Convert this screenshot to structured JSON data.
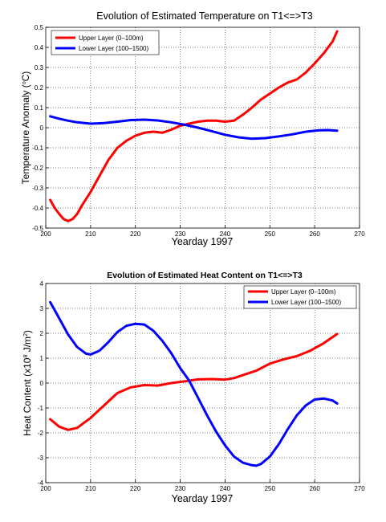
{
  "chart_data": [
    {
      "type": "line",
      "title": "Evolution of Estimated Temperature on T1<=>T3",
      "xlabel": "Yearday 1997",
      "ylabel_prefix": "Temperature Anomaly (",
      "ylabel_sup": "o",
      "ylabel_suffix": "C)",
      "xlim": [
        200,
        270
      ],
      "ylim": [
        -0.5,
        0.5
      ],
      "xticks": [
        200,
        210,
        220,
        230,
        240,
        250,
        260,
        270
      ],
      "yticks": [
        -0.5,
        -0.4,
        -0.3,
        -0.2,
        -0.1,
        0,
        0.1,
        0.2,
        0.3,
        0.4,
        0.5
      ],
      "grid": true,
      "legend_position": "top-left",
      "series": [
        {
          "name": "Upper Layer (0–100m)",
          "color": "#ff0000",
          "x": [
            201,
            202,
            203,
            204,
            205,
            206,
            207,
            208,
            210,
            212,
            214,
            216,
            218,
            220,
            222,
            224,
            226,
            228,
            230,
            232,
            234,
            236,
            238,
            240,
            242,
            244,
            246,
            248,
            250,
            252,
            254,
            256,
            258,
            260,
            262,
            264,
            265
          ],
          "y": [
            -0.36,
            -0.4,
            -0.43,
            -0.455,
            -0.465,
            -0.455,
            -0.43,
            -0.39,
            -0.32,
            -0.24,
            -0.16,
            -0.1,
            -0.065,
            -0.04,
            -0.025,
            -0.02,
            -0.025,
            -0.01,
            0.01,
            0.02,
            0.03,
            0.035,
            0.035,
            0.03,
            0.035,
            0.065,
            0.1,
            0.14,
            0.17,
            0.2,
            0.225,
            0.24,
            0.275,
            0.32,
            0.37,
            0.43,
            0.48
          ]
        },
        {
          "name": "Lower Layer (100–1500)",
          "color": "#0000ff",
          "x": [
            201,
            203,
            205,
            207,
            210,
            213,
            216,
            219,
            222,
            225,
            228,
            231,
            234,
            237,
            240,
            243,
            246,
            249,
            252,
            255,
            258,
            261,
            263,
            265
          ],
          "y": [
            0.057,
            0.045,
            0.035,
            0.027,
            0.02,
            0.023,
            0.03,
            0.038,
            0.04,
            0.036,
            0.027,
            0.015,
            0.0,
            -0.017,
            -0.035,
            -0.048,
            -0.055,
            -0.052,
            -0.043,
            -0.033,
            -0.02,
            -0.013,
            -0.012,
            -0.015
          ]
        }
      ]
    },
    {
      "type": "line",
      "title": "Evolution of Estimated Heat Content on T1<=>T3",
      "xlabel": "Yearday 1997",
      "ylabel_prefix": "Heat Content (x10",
      "ylabel_sup": "8",
      "ylabel_mid": " J/m",
      "ylabel_sup2": "2",
      "ylabel_suffix": ")",
      "xlim": [
        200,
        270
      ],
      "ylim": [
        -4,
        4
      ],
      "xticks": [
        200,
        210,
        220,
        230,
        240,
        250,
        260,
        270
      ],
      "yticks": [
        -4,
        -3,
        -2,
        -1,
        0,
        1,
        2,
        3,
        4
      ],
      "grid": true,
      "legend_position": "top-right",
      "series": [
        {
          "name": "Upper Layer (0–100m)",
          "color": "#ff0000",
          "x": [
            201,
            203,
            205,
            207,
            210,
            213,
            216,
            219,
            222,
            225,
            228,
            231,
            234,
            237,
            240,
            242,
            244,
            247,
            250,
            253,
            256,
            259,
            262,
            265
          ],
          "y": [
            -1.45,
            -1.75,
            -1.88,
            -1.8,
            -1.4,
            -0.9,
            -0.4,
            -0.17,
            -0.08,
            -0.1,
            0.0,
            0.07,
            0.15,
            0.16,
            0.14,
            0.2,
            0.32,
            0.5,
            0.78,
            0.95,
            1.08,
            1.3,
            1.6,
            1.97
          ]
        },
        {
          "name": "Lower Layer (100–1500)",
          "color": "#0000ff",
          "x": [
            201,
            203,
            205,
            207,
            209,
            210,
            212,
            214,
            216,
            218,
            220,
            222,
            224,
            226,
            228,
            230,
            232,
            234,
            236,
            238,
            240,
            242,
            244,
            246,
            247,
            248,
            250,
            252,
            254,
            256,
            258,
            260,
            262,
            264,
            265
          ],
          "y": [
            3.25,
            2.6,
            1.95,
            1.45,
            1.18,
            1.15,
            1.3,
            1.65,
            2.05,
            2.3,
            2.38,
            2.35,
            2.1,
            1.7,
            1.2,
            0.6,
            0.1,
            -0.6,
            -1.3,
            -1.95,
            -2.5,
            -2.95,
            -3.2,
            -3.3,
            -3.32,
            -3.25,
            -2.95,
            -2.45,
            -1.85,
            -1.3,
            -0.9,
            -0.66,
            -0.62,
            -0.7,
            -0.82
          ]
        }
      ]
    }
  ]
}
